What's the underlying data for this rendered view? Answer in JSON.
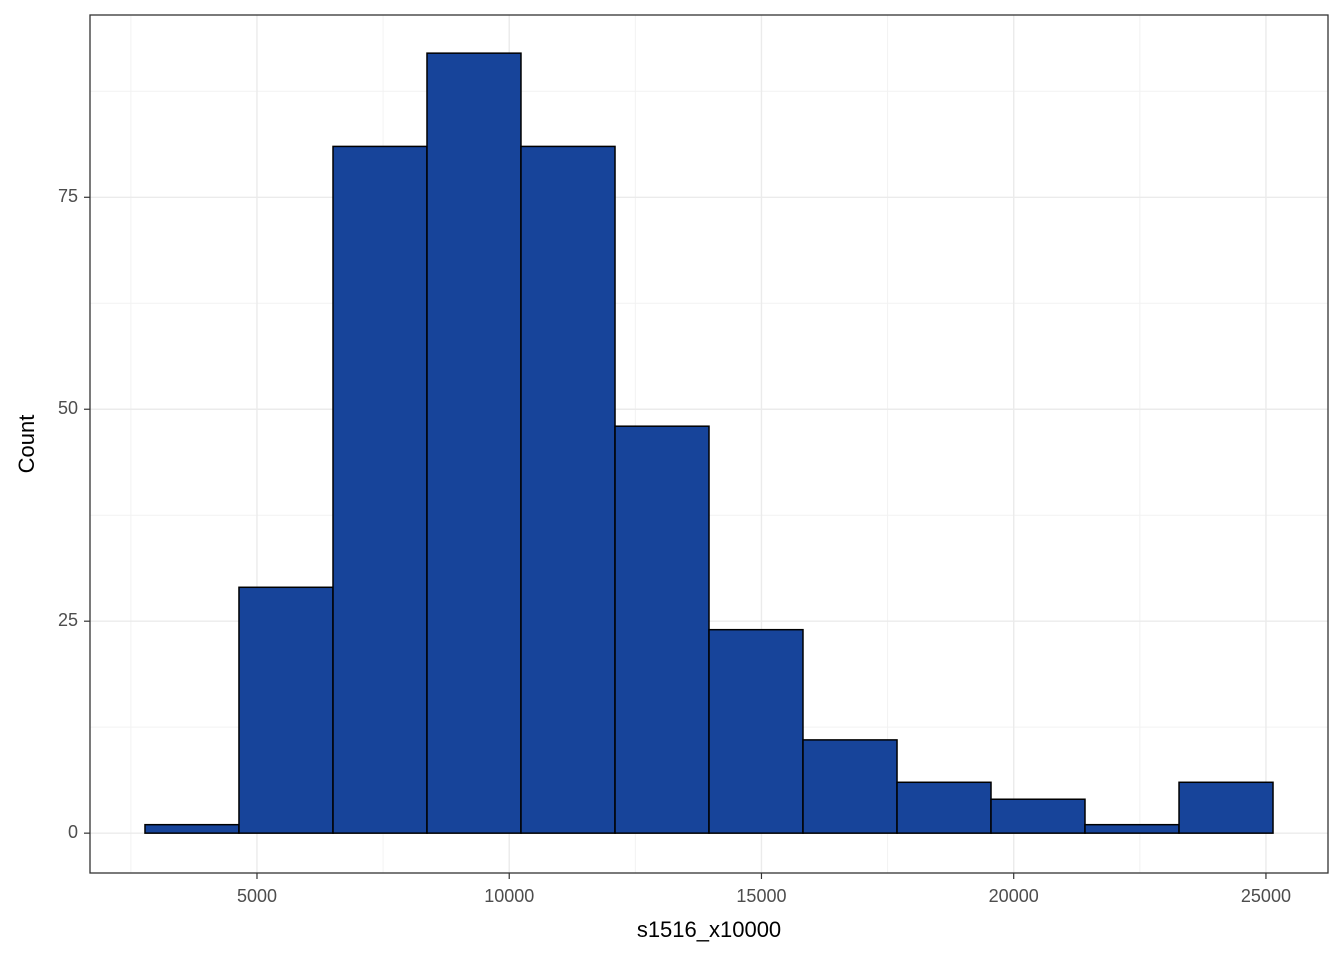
{
  "chart_data": {
    "type": "histogram",
    "x_label": "s1516_x10000",
    "y_label": "Count",
    "bins": [
      2780,
      4643,
      6507,
      8370,
      10233,
      12097,
      13960,
      15823,
      17687,
      19550,
      21413,
      23277,
      25140
    ],
    "counts": [
      1,
      29,
      81,
      92,
      81,
      48,
      24,
      11,
      6,
      4,
      1,
      6
    ],
    "color": "#17449a",
    "xlim": [
      1690,
      26230
    ],
    "ylim": [
      -4.7,
      96.5
    ],
    "xticks": [
      5000,
      10000,
      15000,
      20000,
      25000
    ],
    "yticks": [
      0,
      25,
      50,
      75
    ],
    "grid": true
  }
}
